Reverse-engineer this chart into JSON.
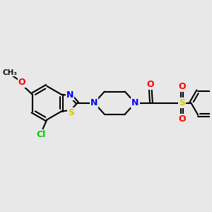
{
  "bg_color": "#E8E8E8",
  "bond_color": "#000000",
  "bond_width": 1.5,
  "atom_colors": {
    "N": "#0000FF",
    "O": "#FF0000",
    "S": "#CCCC00",
    "Cl": "#00CC00",
    "C": "#000000"
  },
  "font_size_atom": 9,
  "font_size_small": 7.5
}
